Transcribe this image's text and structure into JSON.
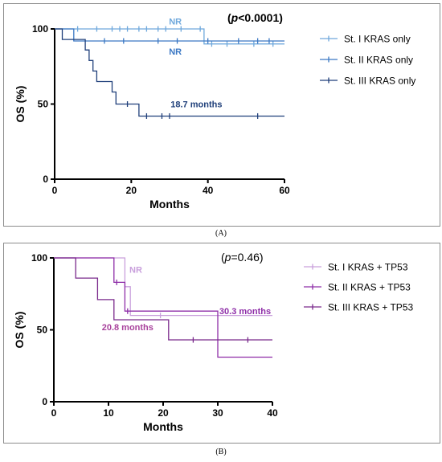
{
  "panels": [
    {
      "caption": "(A)",
      "pvalue_prefix": "(",
      "pvalue_italic": "p",
      "pvalue_rest": "<0.0001)",
      "pvalue_bold": true
    },
    {
      "caption": "(B)",
      "pvalue_prefix": "(",
      "pvalue_italic": "p",
      "pvalue_rest": "=0.46)",
      "pvalue_bold": false
    }
  ],
  "chart_data": [
    {
      "type": "line",
      "subtype": "kaplan-meier",
      "xlabel": "Months",
      "ylabel": "OS (%)",
      "xlim": [
        0,
        60
      ],
      "ylim": [
        0,
        100
      ],
      "xticks": [
        0,
        20,
        40,
        60
      ],
      "yticks": [
        0,
        50,
        100
      ],
      "legend_position": "right",
      "series": [
        {
          "name": "St. I KRAS only",
          "color": "#6fa8dc",
          "steps": [
            [
              0,
              100
            ],
            [
              39,
              100
            ],
            [
              39,
              90
            ],
            [
              60,
              90
            ]
          ],
          "censors": [
            [
              6,
              100
            ],
            [
              11,
              100
            ],
            [
              15,
              100
            ],
            [
              17,
              100
            ],
            [
              19,
              100
            ],
            [
              22,
              100
            ],
            [
              24,
              100
            ],
            [
              27,
              100
            ],
            [
              29,
              100
            ],
            [
              33,
              100
            ],
            [
              38,
              100
            ],
            [
              41,
              90
            ],
            [
              45,
              90
            ],
            [
              52,
              90
            ],
            [
              57,
              90
            ]
          ]
        },
        {
          "name": "St. II KRAS only",
          "color": "#3b78c4",
          "steps": [
            [
              0,
              100
            ],
            [
              5,
              100
            ],
            [
              5,
              92
            ],
            [
              60,
              92
            ]
          ],
          "censors": [
            [
              13,
              92
            ],
            [
              18,
              92
            ],
            [
              27,
              92
            ],
            [
              32,
              92
            ],
            [
              40,
              92
            ],
            [
              48,
              92
            ],
            [
              53,
              92
            ],
            [
              56,
              92
            ]
          ]
        },
        {
          "name": "St. III KRAS only",
          "color": "#1f3f7a",
          "steps": [
            [
              0,
              100
            ],
            [
              2,
              100
            ],
            [
              2,
              93
            ],
            [
              8,
              93
            ],
            [
              8,
              86
            ],
            [
              9,
              86
            ],
            [
              9,
              79
            ],
            [
              10,
              79
            ],
            [
              10,
              72
            ],
            [
              11,
              72
            ],
            [
              11,
              65
            ],
            [
              15,
              65
            ],
            [
              15,
              58
            ],
            [
              16,
              58
            ],
            [
              16,
              50
            ],
            [
              22,
              50
            ],
            [
              22,
              42
            ],
            [
              60,
              42
            ]
          ],
          "censors": [
            [
              19,
              50
            ],
            [
              24,
              42
            ],
            [
              28,
              42
            ],
            [
              30,
              42
            ],
            [
              53,
              42
            ]
          ]
        }
      ],
      "annotations": [
        {
          "text": "NR",
          "x": 31.5,
          "y": 105,
          "color": "#6fa8dc"
        },
        {
          "text": "NR",
          "x": 31.5,
          "y": 85,
          "color": "#3b78c4"
        },
        {
          "text": "18.7 months",
          "x": 37,
          "y": 50,
          "color": "#1f3f7a"
        }
      ]
    },
    {
      "type": "line",
      "subtype": "kaplan-meier",
      "xlabel": "Months",
      "ylabel": "OS (%)",
      "xlim": [
        0,
        40
      ],
      "ylim": [
        0,
        100
      ],
      "xticks": [
        0,
        10,
        20,
        30,
        40
      ],
      "yticks": [
        0,
        50,
        100
      ],
      "legend_position": "right",
      "series": [
        {
          "name": "St. I KRAS + TP53",
          "color": "#c9a0dc",
          "steps": [
            [
              0,
              100
            ],
            [
              13,
              100
            ],
            [
              13,
              80
            ],
            [
              14,
              80
            ],
            [
              14,
              60
            ],
            [
              40,
              60
            ]
          ],
          "censors": [
            [
              19.5,
              60
            ]
          ]
        },
        {
          "name": "St. II KRAS + TP53",
          "color": "#8e2ea8",
          "steps": [
            [
              0,
              100
            ],
            [
              11,
              100
            ],
            [
              11,
              83
            ],
            [
              13,
              83
            ],
            [
              13,
              63
            ],
            [
              30,
              63
            ],
            [
              30,
              31
            ],
            [
              40,
              31
            ]
          ],
          "censors": [
            [
              11.5,
              83
            ],
            [
              13.5,
              63
            ]
          ]
        },
        {
          "name": "St. III KRAS + TP53",
          "color": "#7a2a8c",
          "steps": [
            [
              0,
              100
            ],
            [
              4,
              100
            ],
            [
              4,
              86
            ],
            [
              8,
              86
            ],
            [
              8,
              71
            ],
            [
              11,
              71
            ],
            [
              11,
              57
            ],
            [
              21,
              57
            ],
            [
              21,
              43
            ],
            [
              40,
              43
            ]
          ],
          "censors": [
            [
              25.5,
              43
            ],
            [
              35.5,
              43
            ]
          ]
        }
      ],
      "annotations": [
        {
          "text": "NR",
          "x": 15,
          "y": 92,
          "color": "#c9a0dc"
        },
        {
          "text": "30.3 months",
          "x": 35,
          "y": 63,
          "color": "#8e2ea8"
        },
        {
          "text": "20.8 months",
          "x": 13.5,
          "y": 52,
          "color": "#a8429c"
        }
      ]
    }
  ]
}
